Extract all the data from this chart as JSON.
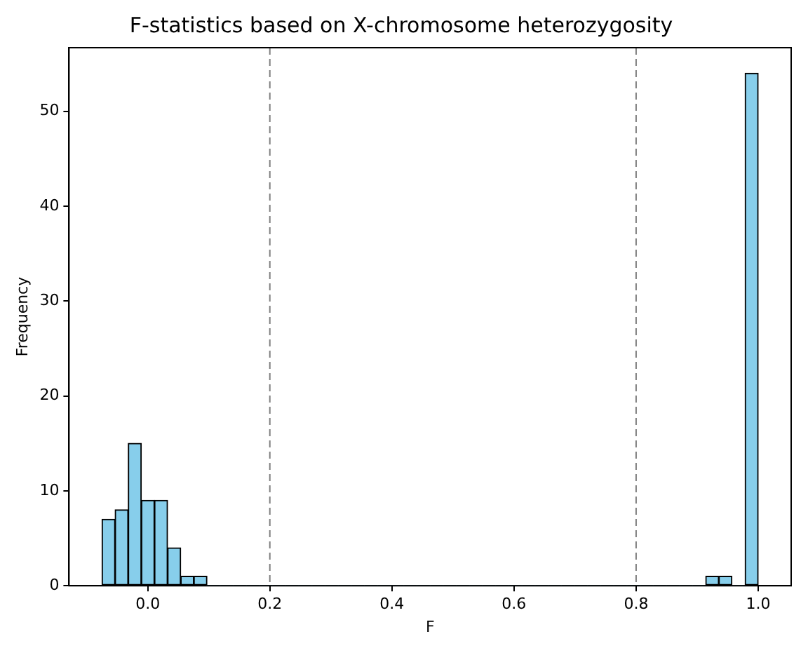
{
  "chart_data": {
    "type": "histogram",
    "title": "F-statistics based on X-chromosome heterozygosity",
    "xlabel": "F",
    "ylabel": "Frequency",
    "bins": [
      -0.075,
      -0.0535,
      -0.032,
      -0.0105,
      0.011,
      0.0325,
      0.054,
      0.0755,
      0.097,
      0.1185,
      0.14,
      0.1615,
      0.183,
      0.2045,
      0.226,
      0.2475,
      0.269,
      0.2905,
      0.312,
      0.3335,
      0.355,
      0.3765,
      0.398,
      0.4195,
      0.441,
      0.4625,
      0.484,
      0.5055,
      0.527,
      0.5485,
      0.57,
      0.5915,
      0.613,
      0.6345,
      0.656,
      0.6775,
      0.699,
      0.7205,
      0.742,
      0.7635,
      0.785,
      0.8065,
      0.828,
      0.8495,
      0.871,
      0.8925,
      0.914,
      0.9355,
      0.957,
      0.9785,
      1.0
    ],
    "values": [
      7,
      8,
      15,
      9,
      9,
      4,
      1,
      1,
      0,
      0,
      0,
      0,
      0,
      0,
      0,
      0,
      0,
      0,
      0,
      0,
      0,
      0,
      0,
      0,
      0,
      0,
      0,
      0,
      0,
      0,
      0,
      0,
      0,
      0,
      0,
      0,
      0,
      0,
      0,
      0,
      0,
      0,
      0,
      0,
      0,
      0,
      1,
      1,
      0,
      54
    ],
    "color": "#87ceeb",
    "xlim": [
      -0.129,
      1.054
    ],
    "xticks": [
      {
        "value": 0,
        "label": "0.0"
      },
      0.2,
      0.4,
      0.6,
      0.8,
      {
        "value": 1,
        "label": "1.0"
      }
    ],
    "ylim": [
      0,
      56.7
    ],
    "yticks": [
      0,
      10,
      20,
      30,
      40,
      50
    ],
    "ref_lines": [
      {
        "axis": "x",
        "value": 0.2,
        "color": "#808080",
        "line_style": "dashed"
      },
      {
        "axis": "x",
        "value": 0.8,
        "color": "#808080",
        "line_style": "dashed"
      }
    ],
    "grid": false,
    "legend": false
  }
}
